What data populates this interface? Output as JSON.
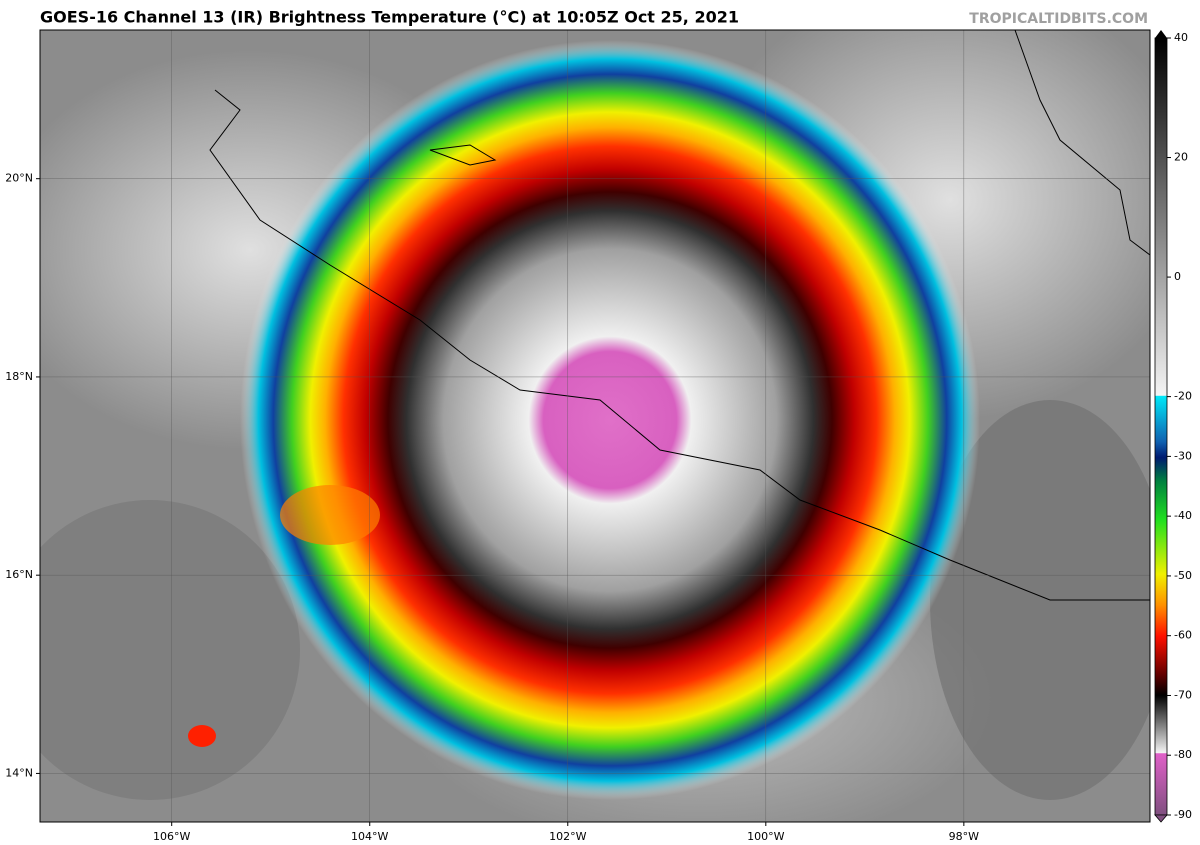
{
  "header": {
    "title": "GOES-16 Channel 13 (IR) Brightness Temperature (°C) at 10:05Z Oct 25, 2021",
    "credit": "TROPICALTIDBITS.COM"
  },
  "map": {
    "lon_range": [
      -107.33,
      -96.12
    ],
    "lat_range": [
      13.51,
      21.5
    ],
    "lon_ticks": [
      {
        "value": -106,
        "label": "106°W"
      },
      {
        "value": -104,
        "label": "104°W"
      },
      {
        "value": -102,
        "label": "102°W"
      },
      {
        "value": -100,
        "label": "100°W"
      },
      {
        "value": -98,
        "label": "98°W"
      }
    ],
    "lat_ticks": [
      {
        "value": 20,
        "label": "20°N"
      },
      {
        "value": 18,
        "label": "18°N"
      },
      {
        "value": 16,
        "label": "16°N"
      },
      {
        "value": 14,
        "label": "14°N"
      }
    ]
  },
  "colorbar": {
    "range": [
      -90,
      40
    ],
    "ticks": [
      40,
      20,
      0,
      -20,
      -30,
      -40,
      -50,
      -60,
      -70,
      -80,
      -90
    ]
  }
}
